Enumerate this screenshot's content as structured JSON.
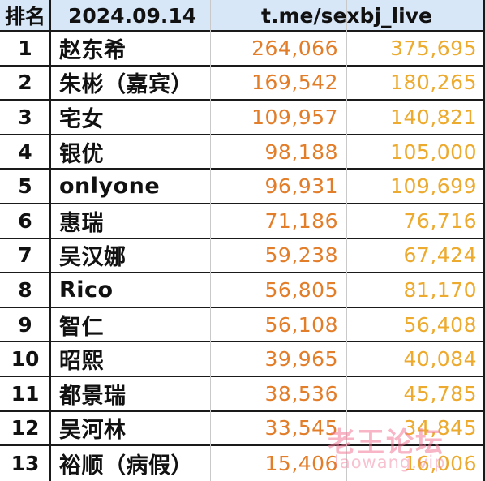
{
  "header": {
    "rank_label": "排名",
    "date": "2024.09.14",
    "channel": "t.me/sexbj_live"
  },
  "rows": [
    {
      "rank": "1",
      "name": "赵东希",
      "value1": "264,066",
      "value2": "375,695"
    },
    {
      "rank": "2",
      "name": "朱彬（嘉宾）",
      "value1": "169,542",
      "value2": "180,265"
    },
    {
      "rank": "3",
      "name": "宅女",
      "value1": "109,957",
      "value2": "140,821"
    },
    {
      "rank": "4",
      "name": "银优",
      "value1": "98,188",
      "value2": "105,000"
    },
    {
      "rank": "5",
      "name": "onlyone",
      "value1": "96,931",
      "value2": "109,699"
    },
    {
      "rank": "6",
      "name": "惠瑞",
      "value1": "71,186",
      "value2": "76,716"
    },
    {
      "rank": "7",
      "name": "吴汉娜",
      "value1": "59,238",
      "value2": "67,424"
    },
    {
      "rank": "8",
      "name": "Rico",
      "value1": "56,805",
      "value2": "81,170"
    },
    {
      "rank": "9",
      "name": "智仁",
      "value1": "56,108",
      "value2": "56,408"
    },
    {
      "rank": "10",
      "name": "昭熙",
      "value1": "39,965",
      "value2": "40,084"
    },
    {
      "rank": "11",
      "name": "都景瑞",
      "value1": "38,536",
      "value2": "45,785"
    },
    {
      "rank": "12",
      "name": "吴河林",
      "value1": "33,545",
      "value2": "34,845"
    },
    {
      "rank": "13",
      "name": "裕顺（病假）",
      "value1": "15,406",
      "value2": "16,006"
    }
  ],
  "watermark": {
    "title": "老王论坛",
    "subtitle": "laowang.vip"
  },
  "colors": {
    "header_bg": "#d7e7f7",
    "value1": "#e27d2a",
    "value2": "#ecaa2e",
    "grid": "#1a1a1a"
  }
}
